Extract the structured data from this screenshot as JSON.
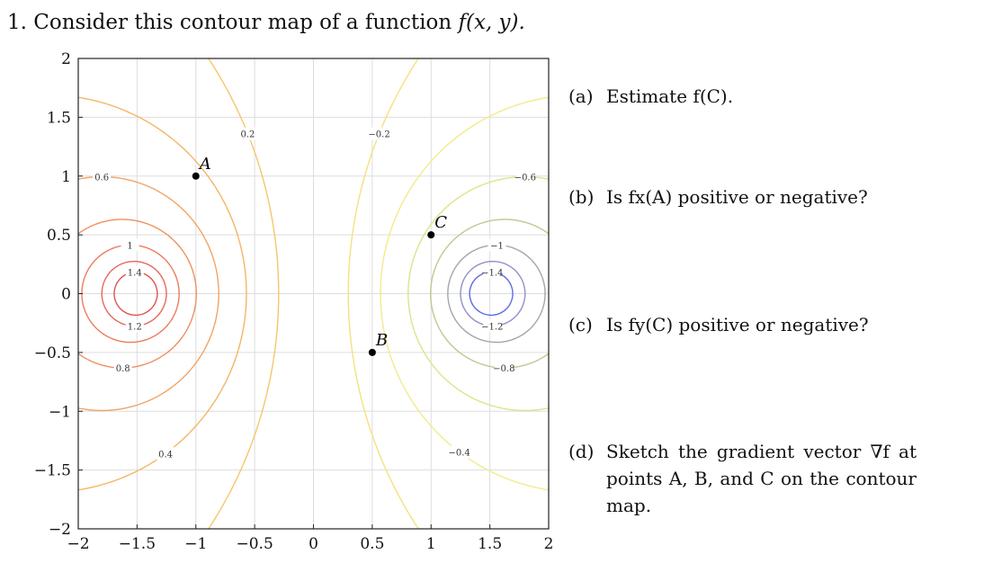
{
  "heading": {
    "number": "1.",
    "text": "Consider this contour map of a function",
    "func": "f(x, y)."
  },
  "questions": [
    {
      "label": "(a)",
      "text": "Estimate f(C)."
    },
    {
      "label": "(b)",
      "text": "Is fx(A) positive or negative?"
    },
    {
      "label": "(c)",
      "text": "Is fy(C) positive or negative?"
    },
    {
      "label": "(d)",
      "text": "Sketch the gradient vector ∇f at points A, B, and C on the contour map."
    }
  ],
  "chart_data": {
    "type": "contour",
    "xlim": [
      -2,
      2
    ],
    "ylim": [
      -2,
      2
    ],
    "x_ticks": [
      "−2",
      "−1.5",
      "−1",
      "−0.5",
      "0",
      "0.5",
      "1",
      "1.5",
      "2"
    ],
    "y_ticks": [
      "2",
      "1.5",
      "1",
      "0.5",
      "0",
      "−0.5",
      "−1",
      "−1.5",
      "−2"
    ],
    "grid": true,
    "points": [
      {
        "name": "A",
        "x": -1,
        "y": 1
      },
      {
        "name": "B",
        "x": 0.5,
        "y": -0.5
      },
      {
        "name": "C",
        "x": 1,
        "y": 0.5
      }
    ],
    "contour_levels": [
      {
        "value": 1.4,
        "label": "1.4",
        "color": "#e05050"
      },
      {
        "value": 1.2,
        "label": "1.2",
        "color": "#e5685a"
      },
      {
        "value": 1.0,
        "label": "1",
        "color": "#ea7c5e"
      },
      {
        "value": 0.8,
        "label": "0.8",
        "color": "#ef9060"
      },
      {
        "value": 0.6,
        "label": "0.6",
        "color": "#f2a363"
      },
      {
        "value": 0.4,
        "label": "0.4",
        "color": "#f4b566"
      },
      {
        "value": 0.2,
        "label": "0.2",
        "color": "#f5c66b"
      },
      {
        "value": 0.0,
        "label": "0",
        "color": "#f2d276"
      },
      {
        "value": -0.2,
        "label": "−0.2",
        "color": "#f6e07e"
      },
      {
        "value": -0.4,
        "label": "−0.4",
        "color": "#f3ea8c"
      },
      {
        "value": -0.6,
        "label": "−0.6",
        "color": "#dfe28a"
      },
      {
        "value": -0.8,
        "label": "−0.8",
        "color": "#bfc98f"
      },
      {
        "value": -1.0,
        "label": "−1",
        "color": "#a0a7a8"
      },
      {
        "value": -1.2,
        "label": "−1.2",
        "color": "#8f8fc8"
      },
      {
        "value": -1.4,
        "label": "−1.4",
        "color": "#5b6be0"
      }
    ]
  }
}
